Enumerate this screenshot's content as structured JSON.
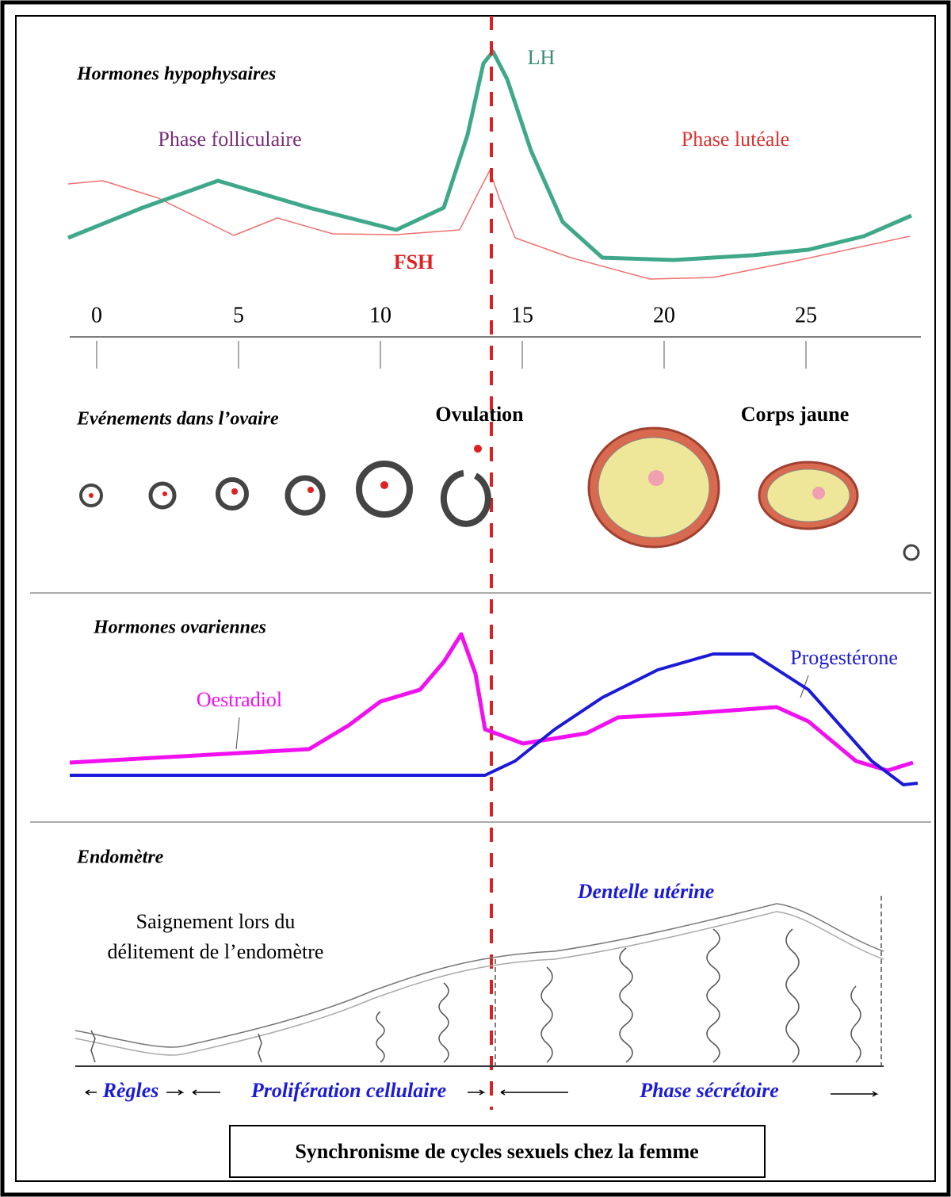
{
  "pituitary": {
    "title": "Hormones hypophysaires",
    "phases": [
      "Phase folliculaire",
      "Phase lutéale"
    ],
    "curves": [
      "LH",
      "FSH"
    ]
  },
  "day_axis": {
    "ticks": [
      0,
      5,
      10,
      15,
      20,
      25
    ]
  },
  "ovary": {
    "title": "Evénements dans l’ovaire",
    "labels": [
      "Ovulation",
      "Corps jaune"
    ]
  },
  "ovarian_hormones": {
    "title": "Hormones ovariennes",
    "curves": [
      "Oestradiol",
      "Progestérone"
    ]
  },
  "endometrium": {
    "title": "Endomètre",
    "note": [
      "Saignement lors du",
      "délitement de l’endomètre"
    ],
    "lace": "Dentelle utérine",
    "phases": [
      "Règles",
      "Prolifération cellulaire",
      "Phase sécrétoire"
    ]
  },
  "caption": "Synchronisme de cycles sexuels chez la femme"
}
